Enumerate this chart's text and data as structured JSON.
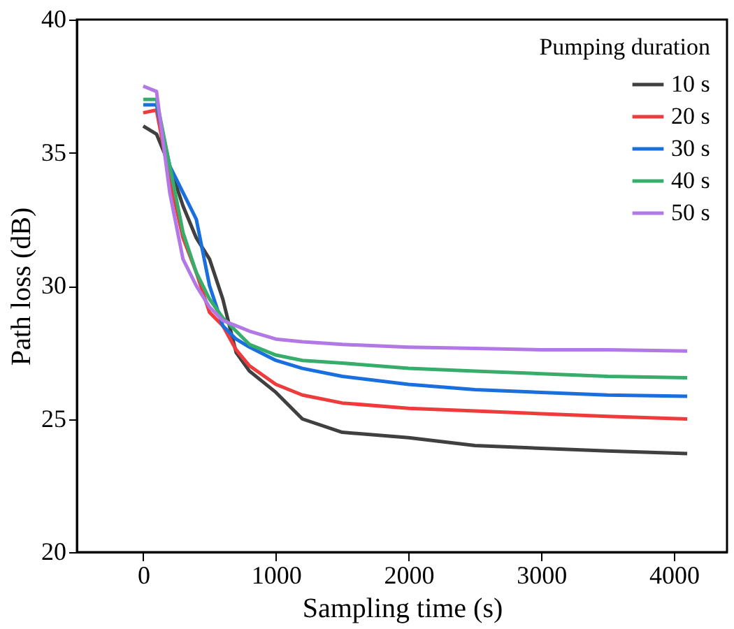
{
  "chart_data": {
    "type": "line",
    "xlabel": "Sampling time (s)",
    "ylabel": "Path loss (dB)",
    "legend_title": "Pumping duration",
    "xlim": [
      -500,
      4400
    ],
    "xticks": [
      0,
      1000,
      2000,
      3000,
      4000
    ],
    "ylim": [
      20,
      40
    ],
    "yticks": [
      20,
      25,
      30,
      35,
      40
    ],
    "grid": false,
    "legend": "top right",
    "marker": "none",
    "line_style": "solid",
    "x": [
      0,
      100,
      200,
      300,
      400,
      500,
      600,
      700,
      800,
      1000,
      1200,
      1500,
      2000,
      2500,
      3000,
      3500,
      4100
    ],
    "series": [
      {
        "name": "10 s",
        "color": "#404040",
        "values": [
          36.0,
          35.7,
          34.5,
          33.0,
          31.8,
          31.0,
          29.5,
          27.5,
          26.8,
          26.0,
          25.0,
          24.5,
          24.3,
          24.0,
          23.9,
          23.8,
          23.7
        ]
      },
      {
        "name": "20 s",
        "color": "#ef3b3b",
        "values": [
          36.5,
          36.6,
          34.0,
          31.8,
          30.5,
          29.0,
          28.5,
          27.6,
          27.0,
          26.3,
          25.9,
          25.6,
          25.4,
          25.3,
          25.2,
          25.1,
          25.0
        ]
      },
      {
        "name": "30 s",
        "color": "#1a6fdf",
        "values": [
          36.8,
          36.8,
          34.5,
          33.5,
          32.5,
          30.0,
          28.5,
          28.0,
          27.7,
          27.2,
          26.9,
          26.6,
          26.3,
          26.1,
          26.0,
          25.9,
          25.85
        ]
      },
      {
        "name": "40 s",
        "color": "#37ad6b",
        "values": [
          37.0,
          37.0,
          34.5,
          32.0,
          30.5,
          29.5,
          28.8,
          28.3,
          27.8,
          27.4,
          27.2,
          27.1,
          26.9,
          26.8,
          26.7,
          26.6,
          26.55
        ]
      },
      {
        "name": "50 s",
        "color": "#b178e6",
        "values": [
          37.5,
          37.3,
          33.5,
          31.0,
          30.0,
          29.2,
          28.7,
          28.5,
          28.3,
          28.0,
          27.9,
          27.8,
          27.7,
          27.65,
          27.6,
          27.6,
          27.55
        ]
      }
    ]
  }
}
